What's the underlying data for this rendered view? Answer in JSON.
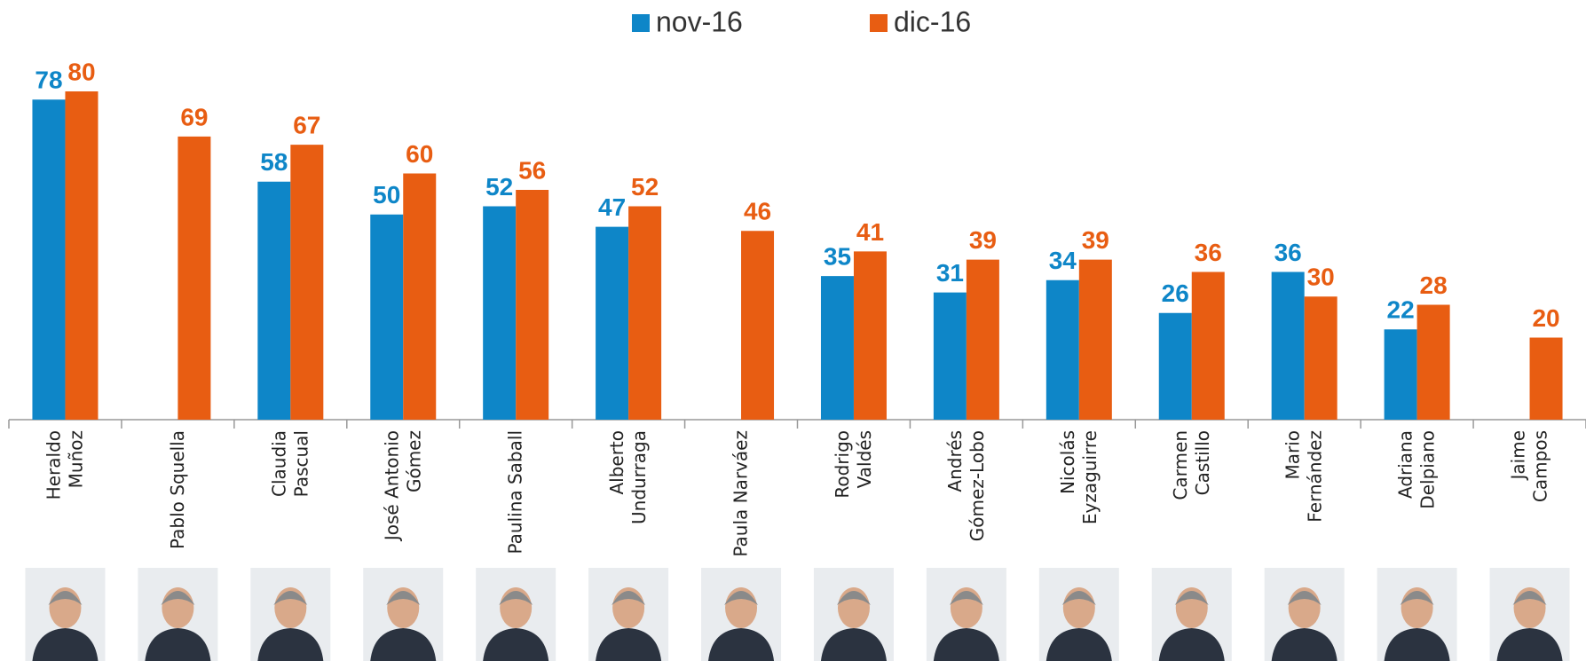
{
  "chart_data": {
    "type": "bar",
    "categories": [
      "Heraldo\nMuñoz",
      "Pablo Squella",
      "Claudia\nPascual",
      "José Antonio\nGómez",
      "Paulina Saball",
      "Alberto\nUndurraga",
      "Paula Narváez",
      "Rodrigo\nValdés",
      "Andrés\nGómez-Lobo",
      "Nicolás\nEyzaguirre",
      "Carmen\nCastillo",
      "Mario\nFernández",
      "Adriana\nDelpiano",
      "Jaime\nCampos"
    ],
    "series": [
      {
        "name": "nov-16",
        "color": "#0e86c8",
        "values": [
          78,
          null,
          58,
          50,
          52,
          47,
          null,
          35,
          31,
          34,
          26,
          36,
          22,
          null
        ]
      },
      {
        "name": "dic-16",
        "color": "#e85d12",
        "values": [
          80,
          69,
          67,
          60,
          56,
          52,
          46,
          41,
          39,
          39,
          36,
          30,
          28,
          20
        ]
      }
    ],
    "ylim": [
      0,
      80
    ],
    "legend": "top"
  }
}
